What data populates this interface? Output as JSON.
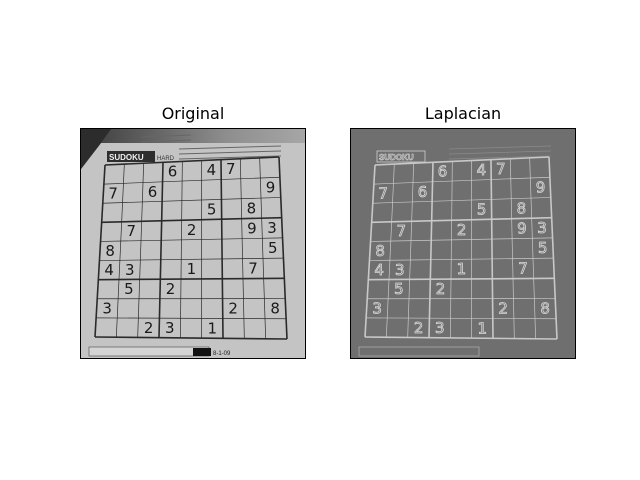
{
  "figure": {
    "left_title": "Original",
    "right_title": "Laplacian"
  },
  "puzzle": {
    "header_label": "SUDOKU",
    "difficulty_label": "HARD",
    "footer_text": "8-1-09",
    "grid": [
      [
        null,
        null,
        null,
        6,
        null,
        4,
        7,
        null,
        null
      ],
      [
        7,
        null,
        6,
        null,
        null,
        null,
        null,
        null,
        9
      ],
      [
        null,
        null,
        null,
        null,
        null,
        5,
        null,
        8,
        null
      ],
      [
        null,
        7,
        null,
        null,
        2,
        null,
        null,
        9,
        3
      ],
      [
        8,
        null,
        null,
        null,
        null,
        null,
        null,
        null,
        5
      ],
      [
        4,
        3,
        null,
        null,
        1,
        null,
        null,
        7,
        null
      ],
      [
        null,
        5,
        null,
        2,
        null,
        null,
        null,
        null,
        null
      ],
      [
        3,
        null,
        null,
        null,
        null,
        null,
        2,
        null,
        8
      ],
      [
        null,
        null,
        2,
        3,
        null,
        1,
        null,
        null,
        null
      ]
    ]
  },
  "colors": {
    "original_paper": "#b9b9b9",
    "original_ink": "#1a1a1a",
    "laplacian_bg": "#6f6f6f",
    "laplacian_edge": "#d8d8d8"
  }
}
